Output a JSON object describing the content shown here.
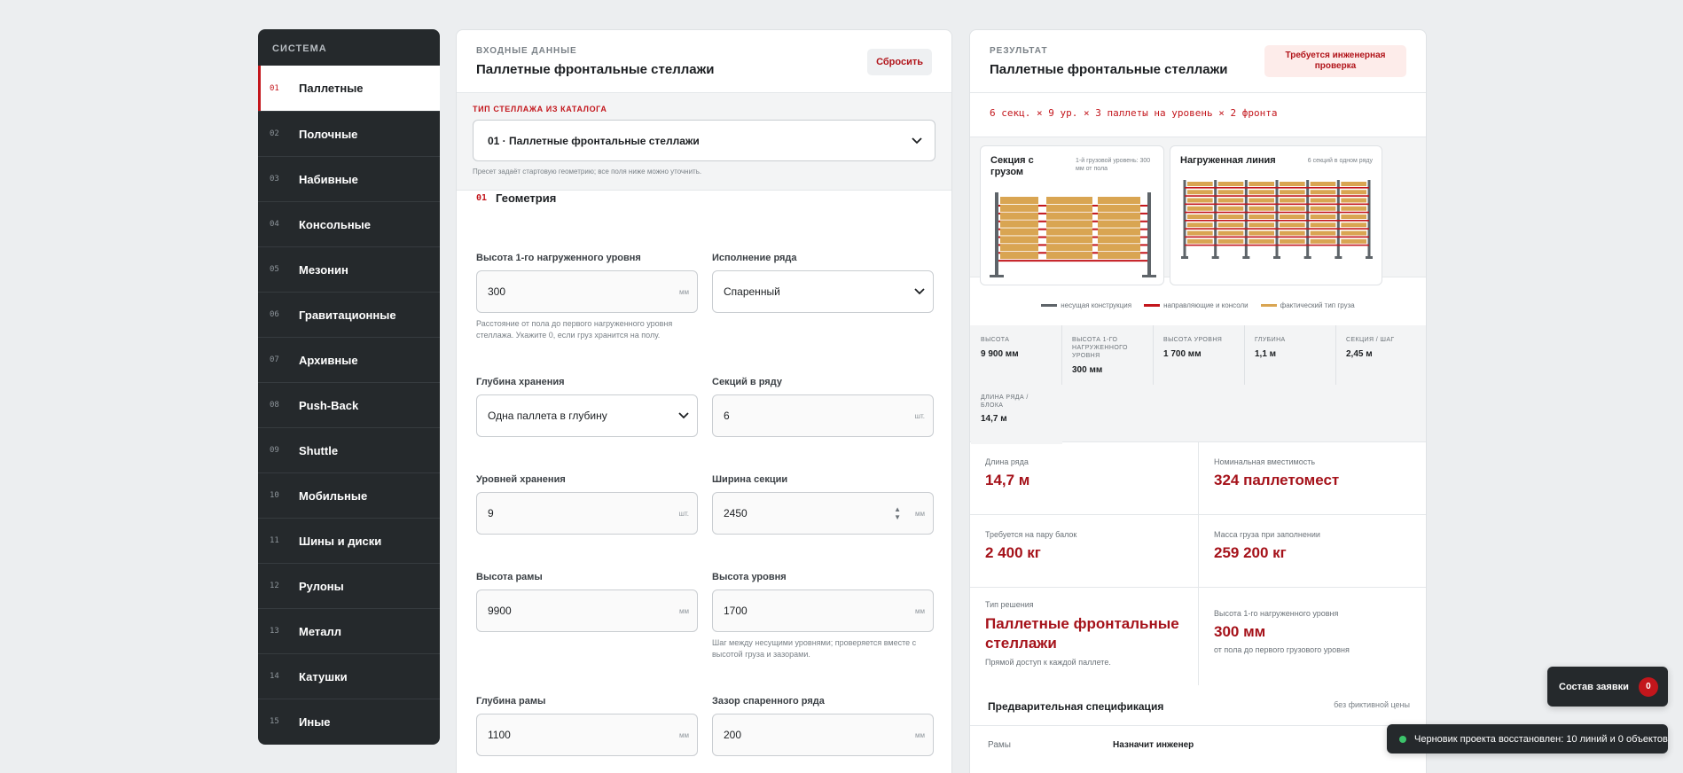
{
  "sidebar": {
    "title": "СИСТЕМА",
    "items": [
      {
        "num": "01",
        "label": "Паллетные"
      },
      {
        "num": "02",
        "label": "Полочные"
      },
      {
        "num": "03",
        "label": "Набивные"
      },
      {
        "num": "04",
        "label": "Консольные"
      },
      {
        "num": "05",
        "label": "Мезонин"
      },
      {
        "num": "06",
        "label": "Гравитационные"
      },
      {
        "num": "07",
        "label": "Архивные"
      },
      {
        "num": "08",
        "label": "Push-Back"
      },
      {
        "num": "09",
        "label": "Shuttle"
      },
      {
        "num": "10",
        "label": "Мобильные"
      },
      {
        "num": "11",
        "label": "Шины и диски"
      },
      {
        "num": "12",
        "label": "Рулоны"
      },
      {
        "num": "13",
        "label": "Металл"
      },
      {
        "num": "14",
        "label": "Катушки"
      },
      {
        "num": "15",
        "label": "Иные"
      }
    ]
  },
  "input": {
    "kicker": "ВХОДНЫЕ ДАННЫЕ",
    "title": "Паллетные фронтальные стеллажи",
    "reset_label": "Сбросить",
    "catalog": {
      "label": "ТИП СТЕЛЛАЖА ИЗ КАТАЛОГА",
      "selected": "01 · Паллетные фронтальные стеллажи",
      "hint": "Пресет задаёт стартовую геометрию; все поля ниже можно уточнить."
    },
    "section": {
      "num": "01",
      "title": "Геометрия"
    },
    "fields": {
      "first_level_height": {
        "label": "Высота 1-го нагруженного уровня",
        "value": "300",
        "unit": "мм",
        "hint": "Расстояние от пола до первого нагруженного уровня стеллажа. Укажите 0, если груз хранится на полу."
      },
      "row_type": {
        "label": "Исполнение ряда",
        "value": "Спаренный"
      },
      "storage_depth": {
        "label": "Глубина хранения",
        "value": "Одна паллета в глубину"
      },
      "sections_in_row": {
        "label": "Секций в ряду",
        "value": "6",
        "unit": "шт."
      },
      "storage_levels": {
        "label": "Уровней хранения",
        "value": "9",
        "unit": "шт."
      },
      "section_width": {
        "label": "Ширина секции",
        "value": "2450",
        "unit": "мм"
      },
      "frame_height": {
        "label": "Высота рамы",
        "value": "9900",
        "unit": "мм"
      },
      "level_height": {
        "label": "Высота уровня",
        "value": "1700",
        "unit": "мм",
        "hint": "Шаг между несущими уровнями; проверяется вместе с высотой груза и зазорами."
      },
      "frame_depth": {
        "label": "Глубина рамы",
        "value": "1100",
        "unit": "мм"
      },
      "double_row_gap": {
        "label": "Зазор спаренного ряда",
        "value": "200",
        "unit": "мм"
      }
    }
  },
  "result": {
    "kicker": "РЕЗУЛЬТАТ",
    "title": "Паллетные фронтальные стеллажи",
    "warning": "Требуется инженерная проверка",
    "summary": "6 секц. × 9 ур. × 3 паллеты на уровень × 2 фронта",
    "card1": {
      "title": "Секция с грузом",
      "note": "1-й грузовой уровень: 300 мм от пола"
    },
    "card2": {
      "title": "Нагруженная линия",
      "note": "6 секций в одном ряду"
    },
    "legend": {
      "structure": "несущая конструкция",
      "beams": "направляющие и консоли",
      "load": "фактический тип груза"
    },
    "stats": [
      {
        "label": "ВЫСОТА",
        "value": "9 900 мм"
      },
      {
        "label": "ВЫСОТА 1-ГО НАГРУЖЕННОГО УРОВНЯ",
        "value": "300 мм"
      },
      {
        "label": "ВЫСОТА УРОВНЯ",
        "value": "1 700 мм"
      },
      {
        "label": "ГЛУБИНА",
        "value": "1,1 м"
      },
      {
        "label": "СЕКЦИЯ / ШАГ",
        "value": "2,45 м"
      },
      {
        "label": "ДЛИНА РЯДА / БЛОКА",
        "value": "14,7 м"
      }
    ],
    "metrics": {
      "row_length": {
        "label": "Длина ряда",
        "value": "14,7 м"
      },
      "capacity": {
        "label": "Номинальная вместимость",
        "value": "324 паллетомест"
      },
      "beam_pair": {
        "label": "Требуется на пару балок",
        "value": "2 400 кг"
      },
      "load_mass": {
        "label": "Масса груза при заполнении",
        "value": "259 200 кг"
      },
      "solution": {
        "label": "Тип решения",
        "value": "Паллетные фронтальные стеллажи",
        "sub": "Прямой доступ к каждой паллете."
      },
      "first_level": {
        "label": "Высота 1-го нагруженного уровня",
        "value": "300 мм",
        "sub": "от пола до первого грузового уровня"
      }
    },
    "spec": {
      "title": "Предварительная спецификация",
      "note": "без фиктивной цены",
      "row": {
        "key": "Рамы",
        "value": "Назначит инженер"
      }
    }
  },
  "cart": {
    "label": "Состав заявки",
    "count": "0"
  },
  "toast": {
    "text": "Черновик проекта восстановлен: 10 линий и 0 объектов"
  },
  "colors": {
    "accent": "#c3161c",
    "dark": "#25292c",
    "beam": "#c3161c",
    "load": "#d9a552",
    "structure": "#5e6469"
  }
}
